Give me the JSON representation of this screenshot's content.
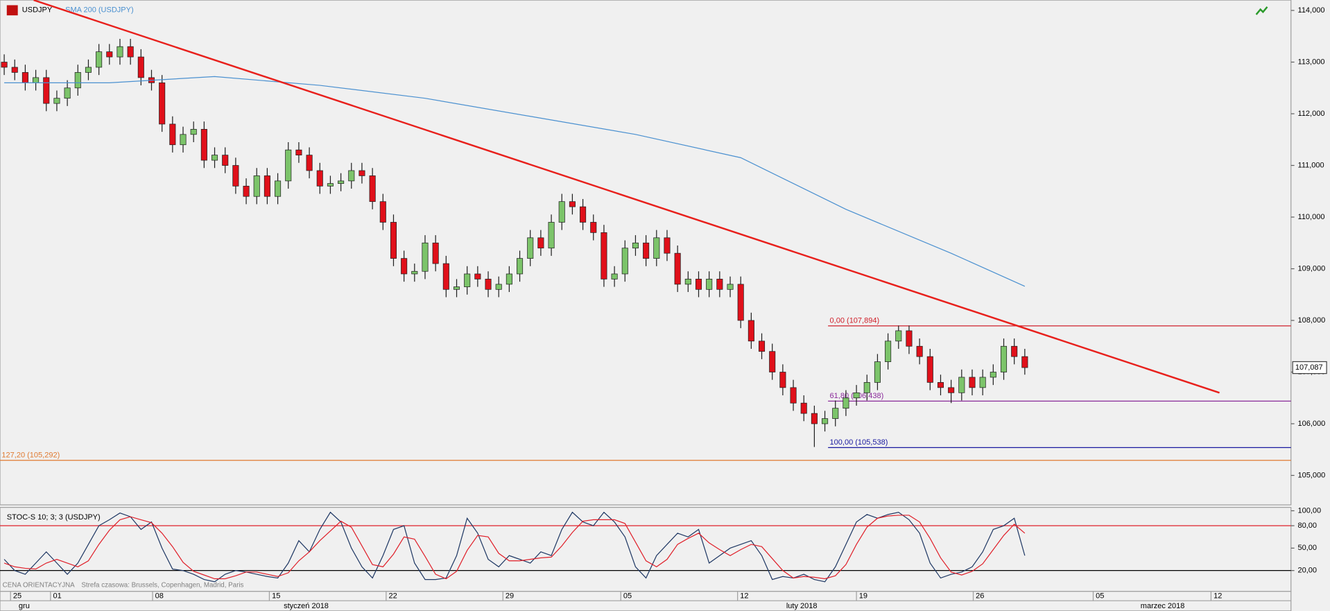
{
  "chart_data": [
    {
      "type": "candlestick",
      "symbol": "USDJPY",
      "xlim": [
        -0.4,
        122.3
      ],
      "xticks": [
        {
          "value": 0.6,
          "label": "25"
        },
        {
          "value": 4.4,
          "label": "01"
        },
        {
          "value": 14.1,
          "label": "08"
        },
        {
          "value": 25.2,
          "label": "15"
        },
        {
          "value": 36.3,
          "label": "22"
        },
        {
          "value": 47.4,
          "label": "29"
        },
        {
          "value": 58.6,
          "label": "05"
        },
        {
          "value": 69.7,
          "label": "12"
        },
        {
          "value": 81.0,
          "label": "19"
        },
        {
          "value": 92.1,
          "label": "26"
        },
        {
          "value": 103.5,
          "label": "05"
        },
        {
          "value": 114.7,
          "label": "12"
        }
      ],
      "month_labels": [
        {
          "value": 1.9,
          "label": "gru"
        },
        {
          "value": 28.7,
          "label": "styczeń 2018"
        },
        {
          "value": 75.8,
          "label": "luty 2018"
        },
        {
          "value": 110.1,
          "label": "marzec 2018"
        }
      ],
      "ylim": [
        104.43,
        114.2
      ],
      "yticks": [
        {
          "value": 105,
          "label": "105,000"
        },
        {
          "value": 106,
          "label": "106,000"
        },
        {
          "value": 107,
          "label": "107,000"
        },
        {
          "value": 108,
          "label": "108,000"
        },
        {
          "value": 109,
          "label": "109,000"
        },
        {
          "value": 110,
          "label": "110,000"
        },
        {
          "value": 111,
          "label": "111,000"
        },
        {
          "value": 112,
          "label": "112,000"
        },
        {
          "value": 113,
          "label": "113,000"
        },
        {
          "value": 114,
          "label": "114,000"
        }
      ],
      "up_color": "#7cc46a",
      "down_color": "#e0101a",
      "ohlc": {
        "open": [
          113.0,
          112.9,
          112.8,
          112.6,
          112.7,
          112.2,
          112.3,
          112.5,
          112.8,
          112.9,
          113.2,
          113.1,
          113.3,
          113.1,
          112.7,
          112.6,
          111.8,
          111.4,
          111.6,
          111.7,
          111.1,
          111.2,
          111.0,
          110.6,
          110.4,
          110.8,
          110.4,
          110.7,
          111.3,
          111.2,
          110.9,
          110.6,
          110.65,
          110.7,
          110.9,
          110.8,
          110.3,
          109.9,
          109.2,
          108.9,
          108.95,
          109.5,
          109.1,
          108.6,
          108.65,
          108.9,
          108.8,
          108.6,
          108.7,
          108.9,
          109.2,
          109.6,
          109.4,
          109.9,
          110.3,
          110.2,
          109.9,
          109.7,
          108.8,
          108.9,
          109.4,
          109.5,
          109.2,
          109.6,
          109.3,
          108.7,
          108.8,
          108.6,
          108.8,
          108.6,
          108.7,
          108.0,
          107.6,
          107.4,
          107.0,
          106.7,
          106.4,
          106.2,
          106.0,
          106.1,
          106.3,
          106.5,
          106.6,
          106.8,
          107.2,
          107.6,
          107.8,
          107.5,
          107.3,
          106.8,
          106.7,
          106.6,
          106.9,
          106.7,
          106.9,
          107.0,
          107.5,
          107.3
        ],
        "high": [
          113.15,
          113.05,
          112.95,
          112.85,
          112.85,
          112.45,
          112.65,
          112.95,
          113.05,
          113.35,
          113.35,
          113.45,
          113.45,
          113.25,
          112.85,
          112.75,
          111.95,
          111.75,
          111.85,
          111.85,
          111.35,
          111.35,
          111.15,
          110.75,
          110.95,
          110.95,
          110.85,
          111.45,
          111.45,
          111.35,
          111.05,
          110.8,
          110.85,
          111.05,
          111.05,
          110.95,
          110.45,
          110.05,
          109.35,
          109.1,
          109.65,
          109.65,
          109.25,
          108.8,
          109.05,
          109.05,
          108.95,
          108.85,
          109.05,
          109.35,
          109.75,
          109.75,
          110.05,
          110.45,
          110.45,
          110.35,
          110.05,
          109.85,
          109.05,
          109.55,
          109.65,
          109.65,
          109.75,
          109.75,
          109.45,
          108.95,
          108.95,
          108.95,
          108.95,
          108.85,
          108.85,
          108.15,
          107.75,
          107.55,
          107.15,
          106.85,
          106.55,
          106.35,
          106.25,
          106.45,
          106.65,
          106.75,
          106.95,
          107.35,
          107.75,
          107.9,
          107.9,
          107.65,
          107.45,
          106.95,
          106.85,
          107.05,
          107.05,
          107.05,
          107.15,
          107.65,
          107.65,
          107.45
        ],
        "low": [
          112.75,
          112.65,
          112.45,
          112.45,
          112.05,
          112.05,
          112.15,
          112.35,
          112.65,
          112.75,
          112.95,
          112.95,
          112.95,
          112.55,
          112.45,
          111.65,
          111.25,
          111.25,
          111.45,
          110.95,
          110.95,
          110.85,
          110.45,
          110.25,
          110.25,
          110.25,
          110.25,
          110.55,
          111.05,
          110.75,
          110.45,
          110.45,
          110.5,
          110.55,
          110.65,
          110.15,
          109.75,
          109.05,
          108.75,
          108.75,
          108.8,
          108.95,
          108.45,
          108.45,
          108.5,
          108.65,
          108.45,
          108.45,
          108.55,
          108.75,
          109.05,
          109.25,
          109.25,
          109.75,
          110.05,
          109.75,
          109.55,
          108.65,
          108.65,
          108.75,
          109.25,
          109.05,
          109.05,
          109.15,
          108.55,
          108.55,
          108.45,
          108.45,
          108.45,
          108.45,
          107.85,
          107.45,
          107.25,
          106.85,
          106.55,
          106.25,
          106.05,
          105.55,
          105.85,
          105.95,
          106.15,
          106.35,
          106.45,
          106.65,
          107.05,
          107.45,
          107.35,
          107.15,
          106.65,
          106.55,
          106.4,
          106.45,
          106.55,
          106.55,
          106.75,
          106.85,
          107.15,
          106.95
        ],
        "close": [
          112.9,
          112.8,
          112.6,
          112.7,
          112.2,
          112.3,
          112.5,
          112.8,
          112.9,
          113.2,
          113.1,
          113.3,
          113.1,
          112.7,
          112.6,
          111.8,
          111.4,
          111.6,
          111.7,
          111.1,
          111.2,
          111.0,
          110.6,
          110.4,
          110.8,
          110.4,
          110.7,
          111.3,
          111.2,
          110.9,
          110.6,
          110.65,
          110.7,
          110.9,
          110.8,
          110.3,
          109.9,
          109.2,
          108.9,
          108.95,
          109.5,
          109.1,
          108.6,
          108.65,
          108.9,
          108.8,
          108.6,
          108.7,
          108.9,
          109.2,
          109.6,
          109.4,
          109.9,
          110.3,
          110.2,
          109.9,
          109.7,
          108.8,
          108.9,
          109.4,
          109.5,
          109.2,
          109.6,
          109.3,
          108.7,
          108.8,
          108.6,
          108.8,
          108.6,
          108.7,
          108.0,
          107.6,
          107.4,
          107.0,
          106.7,
          106.4,
          106.2,
          106.0,
          106.1,
          106.3,
          106.5,
          106.6,
          106.8,
          107.2,
          107.6,
          107.8,
          107.5,
          107.3,
          106.8,
          106.7,
          106.6,
          106.9,
          106.7,
          106.9,
          107.0,
          107.5,
          107.3,
          107.087
        ]
      },
      "series": [
        {
          "name": "SMA 200 (USDJPY)",
          "color": "#4a90d0",
          "x": [
            0,
            10,
            20,
            30,
            40,
            50,
            60,
            70,
            80,
            90,
            97
          ],
          "values": [
            112.6,
            112.6,
            112.72,
            112.55,
            112.3,
            111.95,
            111.6,
            111.15,
            110.15,
            109.3,
            108.66
          ]
        }
      ],
      "trendline": {
        "color": "#e8201c",
        "x": [
          2.8,
          115.5
        ],
        "y": [
          114.2,
          106.6
        ]
      },
      "levels": [
        {
          "value": 107.894,
          "label": "0,00 (107,894)",
          "color": "#d0202a",
          "x_start": 78.3
        },
        {
          "value": 106.438,
          "label": "61,80 (106,438)",
          "color": "#8a2a9a",
          "x_start": 78.3
        },
        {
          "value": 105.538,
          "label": "100,00 (105,538)",
          "color": "#1a1aa0",
          "x_start": 78.3
        },
        {
          "value": 105.292,
          "label": "127,20 (105,292)",
          "color": "#e07a30",
          "x_start": -0.4
        }
      ],
      "last_price": {
        "value": 107.087,
        "label": "107,087"
      },
      "footer": "CENA ORIENTACYJNA",
      "timezone": "Strefa czasowa: Brussels, Copenhagen, Madrid, Paris"
    },
    {
      "type": "line",
      "title": "STOC-S 10; 3; 3 (USDJPY)",
      "ylim": [
        -7.9,
        104.5
      ],
      "yticks": [
        {
          "value": 100,
          "label": "100,00"
        },
        {
          "value": 80,
          "label": "80,00"
        },
        {
          "value": 50,
          "label": "50,00"
        },
        {
          "value": 20,
          "label": "20,00"
        }
      ],
      "levels": [
        {
          "value": 80,
          "color": "#e0202a"
        },
        {
          "value": 20,
          "color": "#000000"
        }
      ],
      "series": [
        {
          "color": "#1f3864",
          "values": [
            35,
            20,
            15,
            30,
            45,
            30,
            15,
            30,
            55,
            80,
            88,
            97,
            92,
            75,
            85,
            50,
            22,
            20,
            15,
            8,
            5,
            15,
            20,
            18,
            15,
            12,
            10,
            30,
            60,
            45,
            75,
            98,
            85,
            50,
            25,
            10,
            40,
            75,
            80,
            30,
            8,
            8,
            10,
            40,
            90,
            70,
            35,
            25,
            40,
            35,
            30,
            45,
            40,
            75,
            98,
            85,
            80,
            98,
            85,
            65,
            25,
            10,
            40,
            55,
            70,
            65,
            75,
            30,
            40,
            50,
            55,
            60,
            40,
            8,
            12,
            10,
            15,
            8,
            5,
            25,
            55,
            85,
            95,
            90,
            95,
            98,
            88,
            70,
            30,
            10,
            15,
            18,
            25,
            45,
            75,
            80,
            90,
            40
          ]
        },
        {
          "color": "#e0202a",
          "values": [
            30,
            25,
            23,
            22,
            30,
            35,
            30,
            25,
            33,
            55,
            74,
            88,
            92,
            88,
            84,
            70,
            52,
            31,
            19,
            14,
            9,
            9,
            13,
            18,
            18,
            15,
            12,
            17,
            33,
            45,
            60,
            73,
            86,
            78,
            53,
            28,
            25,
            42,
            65,
            62,
            39,
            15,
            9,
            19,
            47,
            67,
            65,
            43,
            33,
            33,
            35,
            37,
            38,
            53,
            71,
            86,
            88,
            88,
            88,
            83,
            58,
            33,
            25,
            35,
            55,
            63,
            70,
            57,
            48,
            40,
            48,
            55,
            52,
            36,
            20,
            10,
            12,
            11,
            9,
            13,
            28,
            55,
            78,
            90,
            93,
            94,
            94,
            85,
            63,
            37,
            18,
            14,
            19,
            29,
            48,
            67,
            82,
            70
          ]
        }
      ]
    }
  ]
}
